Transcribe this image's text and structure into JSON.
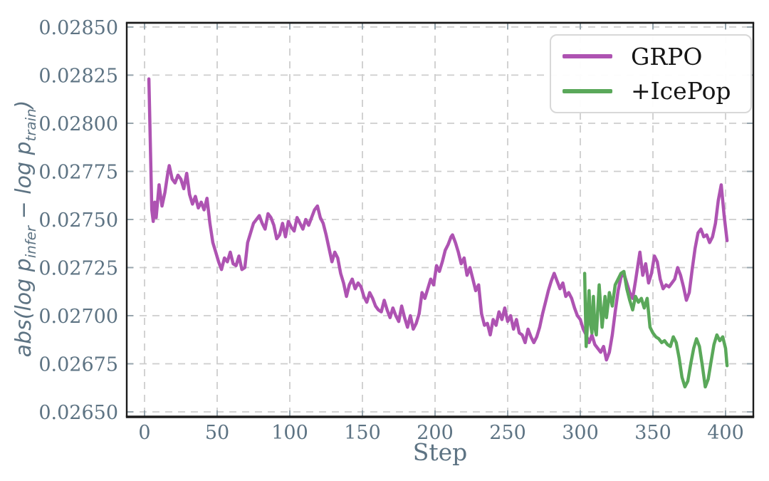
{
  "figure": {
    "xlabel": "Step",
    "ylabel": {
      "prefix": "abs(log p",
      "sub1": "infer",
      "mid": " − log p",
      "sub2": "train",
      "suffix": ")"
    },
    "colors": {
      "grpo": "#AE53B2",
      "icepop": "#5AA85A",
      "tick_label": "#5d7383",
      "grid": "#cdcdcd",
      "spine": "#1b1b1b",
      "tick_mark": "#97a5ad",
      "legend_border": "#d8d8d8",
      "legend_text": "#151515",
      "background": "#ffffff"
    }
  },
  "chart_data": {
    "type": "line",
    "title": "",
    "xlabel": "Step",
    "ylabel": "abs(log p_infer − log p_train)",
    "grid": "dashed",
    "legend_position": "upper right",
    "x_ticks": [
      0,
      50,
      100,
      150,
      200,
      250,
      300,
      350,
      400
    ],
    "x_tick_labels": [
      "0",
      "50",
      "100",
      "150",
      "200",
      "250",
      "300",
      "350",
      "400"
    ],
    "y_ticks": [
      0.0265,
      0.02675,
      0.027,
      0.02725,
      0.0275,
      0.02775,
      0.028,
      0.02825,
      0.0285
    ],
    "y_tick_labels": [
      "0.02650",
      "0.02675",
      "0.02700",
      "0.02725",
      "0.02750",
      "0.02775",
      "0.02800",
      "0.02825",
      "0.02850"
    ],
    "xlim": [
      -12.25,
      419.1
    ],
    "ylim": [
      0.026474,
      0.028522
    ],
    "series": [
      {
        "name": "GRPO",
        "color": "#AE53B2",
        "points": [
          [
            3,
            0.02823
          ],
          [
            5,
            0.02755
          ],
          [
            6,
            0.02749
          ],
          [
            7,
            0.02759
          ],
          [
            8,
            0.02751
          ],
          [
            10,
            0.02768
          ],
          [
            12,
            0.02757
          ],
          [
            14,
            0.02764
          ],
          [
            16,
            0.02774
          ],
          [
            17,
            0.02778
          ],
          [
            19,
            0.02771
          ],
          [
            21,
            0.02769
          ],
          [
            23,
            0.02773
          ],
          [
            25,
            0.02771
          ],
          [
            27,
            0.02766
          ],
          [
            29,
            0.02774
          ],
          [
            31,
            0.02763
          ],
          [
            33,
            0.02758
          ],
          [
            35,
            0.02762
          ],
          [
            37,
            0.02756
          ],
          [
            39,
            0.02759
          ],
          [
            41,
            0.02755
          ],
          [
            43,
            0.02761
          ],
          [
            45,
            0.02748
          ],
          [
            47,
            0.02738
          ],
          [
            49,
            0.02733
          ],
          [
            51,
            0.02728
          ],
          [
            53,
            0.02724
          ],
          [
            55,
            0.0273
          ],
          [
            57,
            0.02728
          ],
          [
            59,
            0.02733
          ],
          [
            61,
            0.02727
          ],
          [
            63,
            0.02726
          ],
          [
            65,
            0.02731
          ],
          [
            67,
            0.02724
          ],
          [
            69,
            0.02725
          ],
          [
            71,
            0.02738
          ],
          [
            73,
            0.02743
          ],
          [
            75,
            0.02748
          ],
          [
            77,
            0.0275
          ],
          [
            79,
            0.02752
          ],
          [
            81,
            0.02748
          ],
          [
            83,
            0.02745
          ],
          [
            85,
            0.02753
          ],
          [
            87,
            0.02751
          ],
          [
            89,
            0.02747
          ],
          [
            91,
            0.0274
          ],
          [
            93,
            0.02742
          ],
          [
            95,
            0.02748
          ],
          [
            97,
            0.02741
          ],
          [
            99,
            0.02749
          ],
          [
            101,
            0.02746
          ],
          [
            103,
            0.02744
          ],
          [
            105,
            0.02751
          ],
          [
            107,
            0.02748
          ],
          [
            109,
            0.02745
          ],
          [
            111,
            0.0275
          ],
          [
            113,
            0.02747
          ],
          [
            115,
            0.02751
          ],
          [
            117,
            0.02755
          ],
          [
            119,
            0.02757
          ],
          [
            121,
            0.02751
          ],
          [
            123,
            0.02748
          ],
          [
            125,
            0.02742
          ],
          [
            127,
            0.02735
          ],
          [
            129,
            0.02728
          ],
          [
            131,
            0.02733
          ],
          [
            133,
            0.0273
          ],
          [
            135,
            0.02722
          ],
          [
            137,
            0.02717
          ],
          [
            139,
            0.0271
          ],
          [
            141,
            0.02716
          ],
          [
            143,
            0.02719
          ],
          [
            145,
            0.02714
          ],
          [
            147,
            0.02717
          ],
          [
            149,
            0.02715
          ],
          [
            151,
            0.0271
          ],
          [
            153,
            0.02707
          ],
          [
            155,
            0.02712
          ],
          [
            157,
            0.02709
          ],
          [
            159,
            0.02705
          ],
          [
            161,
            0.02703
          ],
          [
            163,
            0.02702
          ],
          [
            165,
            0.02708
          ],
          [
            167,
            0.02703
          ],
          [
            169,
            0.02699
          ],
          [
            171,
            0.02704
          ],
          [
            173,
            0.027
          ],
          [
            175,
            0.02697
          ],
          [
            177,
            0.02705
          ],
          [
            179,
            0.02699
          ],
          [
            181,
            0.02694
          ],
          [
            183,
            0.027
          ],
          [
            185,
            0.02693
          ],
          [
            187,
            0.02696
          ],
          [
            189,
            0.02701
          ],
          [
            191,
            0.02712
          ],
          [
            193,
            0.02709
          ],
          [
            195,
            0.02714
          ],
          [
            197,
            0.02719
          ],
          [
            199,
            0.02716
          ],
          [
            201,
            0.02726
          ],
          [
            203,
            0.02723
          ],
          [
            205,
            0.02728
          ],
          [
            207,
            0.02734
          ],
          [
            209,
            0.02737
          ],
          [
            211,
            0.02741
          ],
          [
            212,
            0.02742
          ],
          [
            214,
            0.02738
          ],
          [
            216,
            0.02733
          ],
          [
            218,
            0.02727
          ],
          [
            220,
            0.0273
          ],
          [
            222,
            0.02721
          ],
          [
            224,
            0.02725
          ],
          [
            226,
            0.02719
          ],
          [
            228,
            0.02713
          ],
          [
            230,
            0.02716
          ],
          [
            232,
            0.02701
          ],
          [
            234,
            0.02695
          ],
          [
            236,
            0.02696
          ],
          [
            238,
            0.0269
          ],
          [
            240,
            0.02698
          ],
          [
            242,
            0.02695
          ],
          [
            244,
            0.02702
          ],
          [
            246,
            0.02698
          ],
          [
            248,
            0.02704
          ],
          [
            250,
            0.02697
          ],
          [
            252,
            0.027
          ],
          [
            254,
            0.02693
          ],
          [
            256,
            0.02698
          ],
          [
            258,
            0.02691
          ],
          [
            260,
            0.0269
          ],
          [
            262,
            0.02686
          ],
          [
            264,
            0.02693
          ],
          [
            266,
            0.02689
          ],
          [
            268,
            0.02686
          ],
          [
            270,
            0.02689
          ],
          [
            272,
            0.02694
          ],
          [
            274,
            0.02701
          ],
          [
            276,
            0.02707
          ],
          [
            278,
            0.02713
          ],
          [
            280,
            0.02718
          ],
          [
            282,
            0.02722
          ],
          [
            284,
            0.02718
          ],
          [
            286,
            0.02714
          ],
          [
            288,
            0.02717
          ],
          [
            290,
            0.0271
          ],
          [
            292,
            0.02712
          ],
          [
            294,
            0.02709
          ],
          [
            296,
            0.02704
          ],
          [
            298,
            0.027
          ],
          [
            300,
            0.02698
          ],
          [
            302,
            0.02693
          ],
          [
            304,
            0.0269
          ],
          [
            306,
            0.02686
          ],
          [
            308,
            0.0269
          ],
          [
            310,
            0.02685
          ],
          [
            312,
            0.02683
          ],
          [
            314,
            0.02681
          ],
          [
            316,
            0.02684
          ],
          [
            318,
            0.02677
          ],
          [
            320,
            0.02681
          ],
          [
            322,
            0.0269
          ],
          [
            324,
            0.02702
          ],
          [
            326,
            0.02713
          ],
          [
            328,
            0.0272
          ],
          [
            330,
            0.02722
          ],
          [
            332,
            0.02717
          ],
          [
            334,
            0.02712
          ],
          [
            336,
            0.02709
          ],
          [
            338,
            0.02718
          ],
          [
            340,
            0.02728
          ],
          [
            341,
            0.02733
          ],
          [
            343,
            0.02721
          ],
          [
            345,
            0.02727
          ],
          [
            347,
            0.02717
          ],
          [
            349,
            0.02722
          ],
          [
            351,
            0.02731
          ],
          [
            353,
            0.02728
          ],
          [
            355,
            0.02719
          ],
          [
            357,
            0.02714
          ],
          [
            359,
            0.02716
          ],
          [
            361,
            0.02715
          ],
          [
            363,
            0.02717
          ],
          [
            365,
            0.02719
          ],
          [
            367,
            0.02725
          ],
          [
            369,
            0.02721
          ],
          [
            371,
            0.02715
          ],
          [
            373,
            0.02708
          ],
          [
            375,
            0.02712
          ],
          [
            377,
            0.02724
          ],
          [
            379,
            0.02735
          ],
          [
            381,
            0.02743
          ],
          [
            383,
            0.02745
          ],
          [
            385,
            0.02741
          ],
          [
            387,
            0.02742
          ],
          [
            389,
            0.02738
          ],
          [
            391,
            0.02741
          ],
          [
            393,
            0.02748
          ],
          [
            395,
            0.0276
          ],
          [
            397,
            0.02768
          ],
          [
            399,
            0.02752
          ],
          [
            401,
            0.02739
          ]
        ]
      },
      {
        "name": "+IcePop",
        "color": "#5AA85A",
        "points": [
          [
            303,
            0.02722
          ],
          [
            304,
            0.02684
          ],
          [
            305,
            0.02696
          ],
          [
            306,
            0.02713
          ],
          [
            307,
            0.02696
          ],
          [
            308,
            0.02691
          ],
          [
            309,
            0.0271
          ],
          [
            310,
            0.02694
          ],
          [
            311,
            0.0269
          ],
          [
            313,
            0.02716
          ],
          [
            315,
            0.02694
          ],
          [
            317,
            0.0271
          ],
          [
            318,
            0.02699
          ],
          [
            320,
            0.02712
          ],
          [
            322,
            0.02705
          ],
          [
            324,
            0.02716
          ],
          [
            326,
            0.02719
          ],
          [
            328,
            0.02722
          ],
          [
            330,
            0.02723
          ],
          [
            332,
            0.02714
          ],
          [
            334,
            0.02708
          ],
          [
            336,
            0.02703
          ],
          [
            338,
            0.0271
          ],
          [
            340,
            0.02707
          ],
          [
            342,
            0.02709
          ],
          [
            344,
            0.02704
          ],
          [
            346,
            0.02709
          ],
          [
            348,
            0.02694
          ],
          [
            350,
            0.02691
          ],
          [
            352,
            0.02689
          ],
          [
            354,
            0.02688
          ],
          [
            356,
            0.02686
          ],
          [
            358,
            0.02687
          ],
          [
            360,
            0.02685
          ],
          [
            362,
            0.02684
          ],
          [
            364,
            0.02689
          ],
          [
            366,
            0.02686
          ],
          [
            368,
            0.02678
          ],
          [
            370,
            0.02668
          ],
          [
            372,
            0.02663
          ],
          [
            374,
            0.02666
          ],
          [
            376,
            0.02675
          ],
          [
            378,
            0.02683
          ],
          [
            380,
            0.02688
          ],
          [
            382,
            0.02684
          ],
          [
            384,
            0.02674
          ],
          [
            386,
            0.02663
          ],
          [
            388,
            0.02667
          ],
          [
            390,
            0.02676
          ],
          [
            392,
            0.02685
          ],
          [
            394,
            0.0269
          ],
          [
            396,
            0.02687
          ],
          [
            398,
            0.02689
          ],
          [
            400,
            0.02683
          ],
          [
            401,
            0.02674
          ]
        ]
      }
    ]
  }
}
